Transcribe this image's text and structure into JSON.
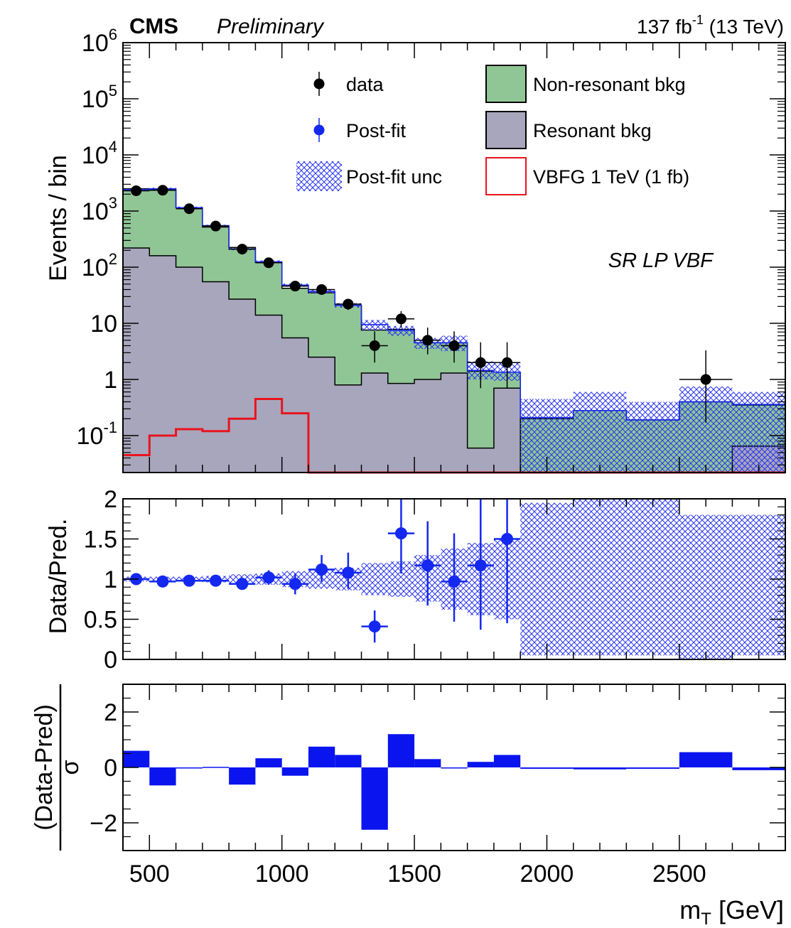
{
  "header": {
    "experiment": "CMS",
    "status": "Preliminary",
    "lumi": "137 fb",
    "lumi_exp": "-1",
    "energy": " (13 TeV)"
  },
  "region_label": "SR LP VBF",
  "colors": {
    "data": "#000000",
    "postfit": "#1428f0",
    "nonres": "#90c696",
    "res": "#a8a6bc",
    "signal": "#e8141e",
    "hatch": "#2a35ee",
    "pull": "#0a14ee"
  },
  "legend": [
    {
      "label": "data",
      "kind": "marker-black"
    },
    {
      "label": "Non-resonant bkg",
      "kind": "box-green"
    },
    {
      "label": "Post-fit",
      "kind": "marker-blue"
    },
    {
      "label": "Resonant bkg",
      "kind": "box-gray"
    },
    {
      "label": "Post-fit unc",
      "kind": "hatch"
    },
    {
      "label": "VBFG 1 TeV (1 fb)",
      "kind": "box-red"
    }
  ],
  "chart_data": [
    {
      "type": "bar",
      "panel": "main",
      "scale": "log",
      "ylabel": "Events / bin",
      "ylim": [
        0.022,
        1000000
      ],
      "yticks": [
        {
          "label": "10",
          "exp": "-1",
          "value": 0.1
        },
        {
          "label": "1",
          "exp": "",
          "value": 1
        },
        {
          "label": "10",
          "exp": "",
          "value": 10
        },
        {
          "label": "10",
          "exp": "2",
          "value": 100
        },
        {
          "label": "10",
          "exp": "3",
          "value": 1000
        },
        {
          "label": "10",
          "exp": "4",
          "value": 10000
        },
        {
          "label": "10",
          "exp": "5",
          "value": 100000
        },
        {
          "label": "10",
          "exp": "6",
          "value": 1000000
        }
      ],
      "xlim": [
        400,
        2900
      ],
      "bin_edges": [
        400,
        500,
        600,
        700,
        800,
        900,
        1000,
        1100,
        1200,
        1300,
        1400,
        1500,
        1600,
        1700,
        1800,
        1900,
        2100,
        2300,
        2500,
        2700,
        2900
      ],
      "series": [
        {
          "name": "Resonant bkg",
          "values": [
            220,
            160,
            100,
            55,
            27,
            14,
            5.5,
            2.5,
            0.8,
            1.3,
            0.85,
            1.0,
            1.3,
            0.06,
            0.7,
            0.022,
            0.022,
            0.022,
            0.022,
            0.065
          ]
        },
        {
          "name": "Non-resonant bkg",
          "values": [
            2500,
            2400,
            1150,
            520,
            225,
            122,
            42,
            35,
            21,
            7.6,
            7.8,
            4.5,
            4.5,
            1.4,
            1.35,
            0.2,
            0.28,
            0.19,
            0.4,
            0.35
          ]
        },
        {
          "name": "Post-fit",
          "values": [
            2400,
            2500,
            1150,
            550,
            210,
            125,
            48,
            37,
            21,
            9.5,
            7.5,
            4.5,
            4.5,
            1.45,
            1.35,
            0.21,
            0.28,
            0.19,
            0.4,
            0.36
          ]
        },
        {
          "name": "Post-fit unc",
          "lower": [
            2300,
            2400,
            1100,
            530,
            200,
            118,
            45,
            34,
            19,
            7.5,
            6.0,
            3.5,
            3.2,
            1.0,
            0.95,
            0.022,
            0.022,
            0.022,
            0.022,
            0.022
          ],
          "upper": [
            2500,
            2600,
            1200,
            570,
            220,
            132,
            51,
            40,
            23,
            11.5,
            9.0,
            5.5,
            6.0,
            2.1,
            2.0,
            0.45,
            0.6,
            0.4,
            0.75,
            0.6
          ]
        },
        {
          "name": "VBFG 1 TeV (1 fb)",
          "values": [
            0.045,
            0.1,
            0.13,
            0.12,
            0.2,
            0.45,
            0.25,
            0.022,
            0.022,
            0.022,
            0.022,
            0.022,
            0.022,
            0.022,
            0.022,
            0.022,
            0.022,
            0.022,
            0.022,
            0.022
          ]
        },
        {
          "name": "data",
          "x": [
            450,
            550,
            650,
            750,
            850,
            950,
            1050,
            1150,
            1250,
            1350,
            1450,
            1550,
            1650,
            1750,
            1850,
            2600
          ],
          "xerr": [
            50,
            50,
            50,
            50,
            50,
            50,
            50,
            50,
            50,
            50,
            50,
            50,
            50,
            50,
            50,
            100
          ],
          "values": [
            2300,
            2350,
            1100,
            540,
            210,
            120,
            46,
            40,
            22,
            4,
            12,
            5,
            4,
            2,
            2,
            1
          ],
          "yerr_low": [
            48,
            48,
            33,
            23,
            14,
            11,
            6.8,
            6.3,
            4.7,
            2.0,
            3.5,
            2.2,
            2.0,
            1.3,
            1.3,
            0.83
          ],
          "yerr_high": [
            48,
            48,
            33,
            23,
            14,
            11,
            6.8,
            6.3,
            4.7,
            3.2,
            4.5,
            3.4,
            3.2,
            2.6,
            2.6,
            2.3
          ]
        }
      ]
    },
    {
      "type": "scatter",
      "panel": "ratio",
      "ylabel": "Data/Pred.",
      "ylim": [
        0,
        2
      ],
      "yticks": [
        {
          "label": "0",
          "value": 0
        },
        {
          "label": "0.5",
          "value": 0.5
        },
        {
          "label": "1",
          "value": 1
        },
        {
          "label": "1.5",
          "value": 1.5
        },
        {
          "label": "2",
          "value": 2
        }
      ],
      "unc_band": {
        "bin_edges": [
          400,
          500,
          600,
          700,
          800,
          900,
          1000,
          1100,
          1200,
          1300,
          1400,
          1500,
          1600,
          1700,
          1800,
          1900,
          2100,
          2300,
          2500,
          2700,
          2900
        ],
        "lower": [
          0.97,
          0.97,
          0.97,
          0.96,
          0.94,
          0.93,
          0.9,
          0.88,
          0.86,
          0.8,
          0.78,
          0.72,
          0.62,
          0.55,
          0.5,
          0.05,
          0.05,
          0.05,
          0.0,
          0.05
        ],
        "upper": [
          1.03,
          1.03,
          1.03,
          1.04,
          1.06,
          1.07,
          1.1,
          1.12,
          1.14,
          1.2,
          1.22,
          1.3,
          1.38,
          1.45,
          1.5,
          1.95,
          2.0,
          2.0,
          1.8,
          1.8
        ]
      },
      "points": {
        "x": [
          450,
          550,
          650,
          750,
          850,
          950,
          1050,
          1150,
          1250,
          1350,
          1450,
          1550,
          1650,
          1750,
          1850
        ],
        "xerr": [
          50,
          50,
          50,
          50,
          50,
          50,
          50,
          50,
          50,
          50,
          50,
          50,
          50,
          50,
          50
        ],
        "values": [
          1.0,
          0.97,
          0.98,
          0.98,
          0.94,
          1.02,
          0.94,
          1.12,
          1.08,
          0.41,
          1.57,
          1.17,
          0.97,
          1.17,
          1.5
        ],
        "yerr_low": [
          0.03,
          0.03,
          0.03,
          0.04,
          0.07,
          0.09,
          0.13,
          0.15,
          0.2,
          0.2,
          0.5,
          0.5,
          0.5,
          0.8,
          1.05
        ],
        "yerr_high": [
          0.03,
          0.03,
          0.03,
          0.04,
          0.07,
          0.09,
          0.13,
          0.18,
          0.25,
          0.2,
          0.5,
          0.55,
          0.6,
          1.0,
          0.8
        ]
      }
    },
    {
      "type": "bar",
      "panel": "pull",
      "ylabel_num": "(Data-Pred)",
      "ylabel_den": "σ",
      "xlabel": "m",
      "xlabel_sub": "T",
      "xlabel_unit": " [GeV]",
      "ylim": [
        -3,
        3
      ],
      "yticks": [
        {
          "label": "−2",
          "value": -2
        },
        {
          "label": "0",
          "value": 0
        },
        {
          "label": "2",
          "value": 2
        }
      ],
      "xticks": [
        {
          "label": "500",
          "value": 500
        },
        {
          "label": "1000",
          "value": 1000
        },
        {
          "label": "1500",
          "value": 1500
        },
        {
          "label": "2000",
          "value": 2000
        },
        {
          "label": "2500",
          "value": 2500
        }
      ],
      "bin_edges": [
        400,
        500,
        600,
        700,
        800,
        900,
        1000,
        1100,
        1200,
        1300,
        1400,
        1500,
        1600,
        1700,
        1800,
        1900,
        2100,
        2300,
        2500,
        2700,
        2900
      ],
      "values": [
        0.6,
        -0.65,
        0.0,
        0.02,
        -0.62,
        0.33,
        -0.3,
        0.75,
        0.45,
        -2.25,
        1.2,
        0.3,
        -0.02,
        0.2,
        0.45,
        -0.05,
        -0.07,
        -0.05,
        0.55,
        -0.1
      ]
    }
  ]
}
